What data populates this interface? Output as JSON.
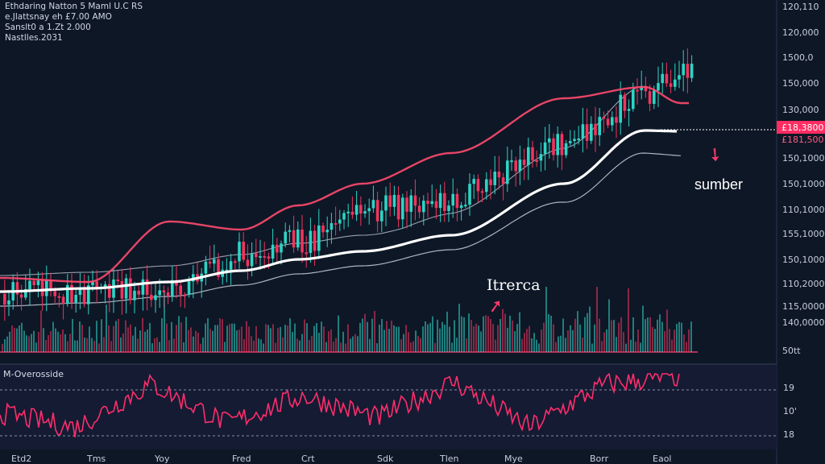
{
  "header": {
    "line1": "Ethdaring Natton 5 Maml U.C RS",
    "line2": "e.Jlattsnay eh £7.00 AMO",
    "line3": "Sanslt0 a 1.Zt 2.000",
    "line4": "Nastlles.2031"
  },
  "price_axis_labels": [
    "120,110",
    "120,000",
    "1500,0",
    "150,000",
    "130,000",
    "150,1000",
    "150,1000",
    "110,1000",
    "155,1000",
    "150,1000",
    "110,2000",
    "115,0000",
    "140,0000",
    "50tt"
  ],
  "price_tags": {
    "tag1": "£18,3800",
    "tag2": "£181,500"
  },
  "colors": {
    "up": "#2dd4c4",
    "down": "#f0345e",
    "bg": "#0e1726",
    "ma_red": "#ff4a6e",
    "ma_white": "#ffffff",
    "rsi": "#ff2d6b"
  },
  "annotations": {
    "sumber": "sumber",
    "itrerca": "Itrerca"
  },
  "rsi": {
    "label": "M-Overosside",
    "levels": [
      "19",
      "10'",
      "18"
    ]
  },
  "x_labels": [
    "Etd2",
    "Tms",
    "Yoy",
    "Fred",
    "Crt",
    "Sdk",
    "Tlen",
    "Mye",
    "Borr",
    "Eaol"
  ],
  "chart_data": [
    {
      "type": "candlestick",
      "title": "Ethdaring Natton 5 Maml U.C RS",
      "x": [
        "Etd2",
        "Tms",
        "Yoy",
        "Fred",
        "Crt",
        "Sdk",
        "Tlen",
        "Mye",
        "Borr",
        "Eaol"
      ],
      "close_trend": [
        365,
        362,
        360,
        315,
        300,
        262,
        245,
        178,
        120,
        85
      ],
      "ma_slow_white": [
        362,
        358,
        350,
        336,
        322,
        312,
        292,
        228,
        162,
        163
      ],
      "ma_red": [
        345,
        350,
        275,
        285,
        255,
        228,
        190,
        122,
        108,
        128
      ],
      "volume_relative": [
        0.4,
        0.45,
        0.5,
        0.45,
        0.5,
        0.55,
        0.5,
        0.6,
        0.7,
        0.45
      ],
      "grid": false,
      "legend": "none"
    },
    {
      "type": "line",
      "title": "M-Overosside",
      "x": [
        "Etd2",
        "Tms",
        "Yoy",
        "Fred",
        "Crt",
        "Sdk",
        "Tlen",
        "Mye",
        "Borr",
        "Eaol"
      ],
      "series": [
        {
          "values": [
            48,
            30,
            85,
            35,
            70,
            42,
            88,
            30,
            85,
            95
          ]
        }
      ],
      "levels": [
        19,
        10,
        18
      ]
    }
  ]
}
